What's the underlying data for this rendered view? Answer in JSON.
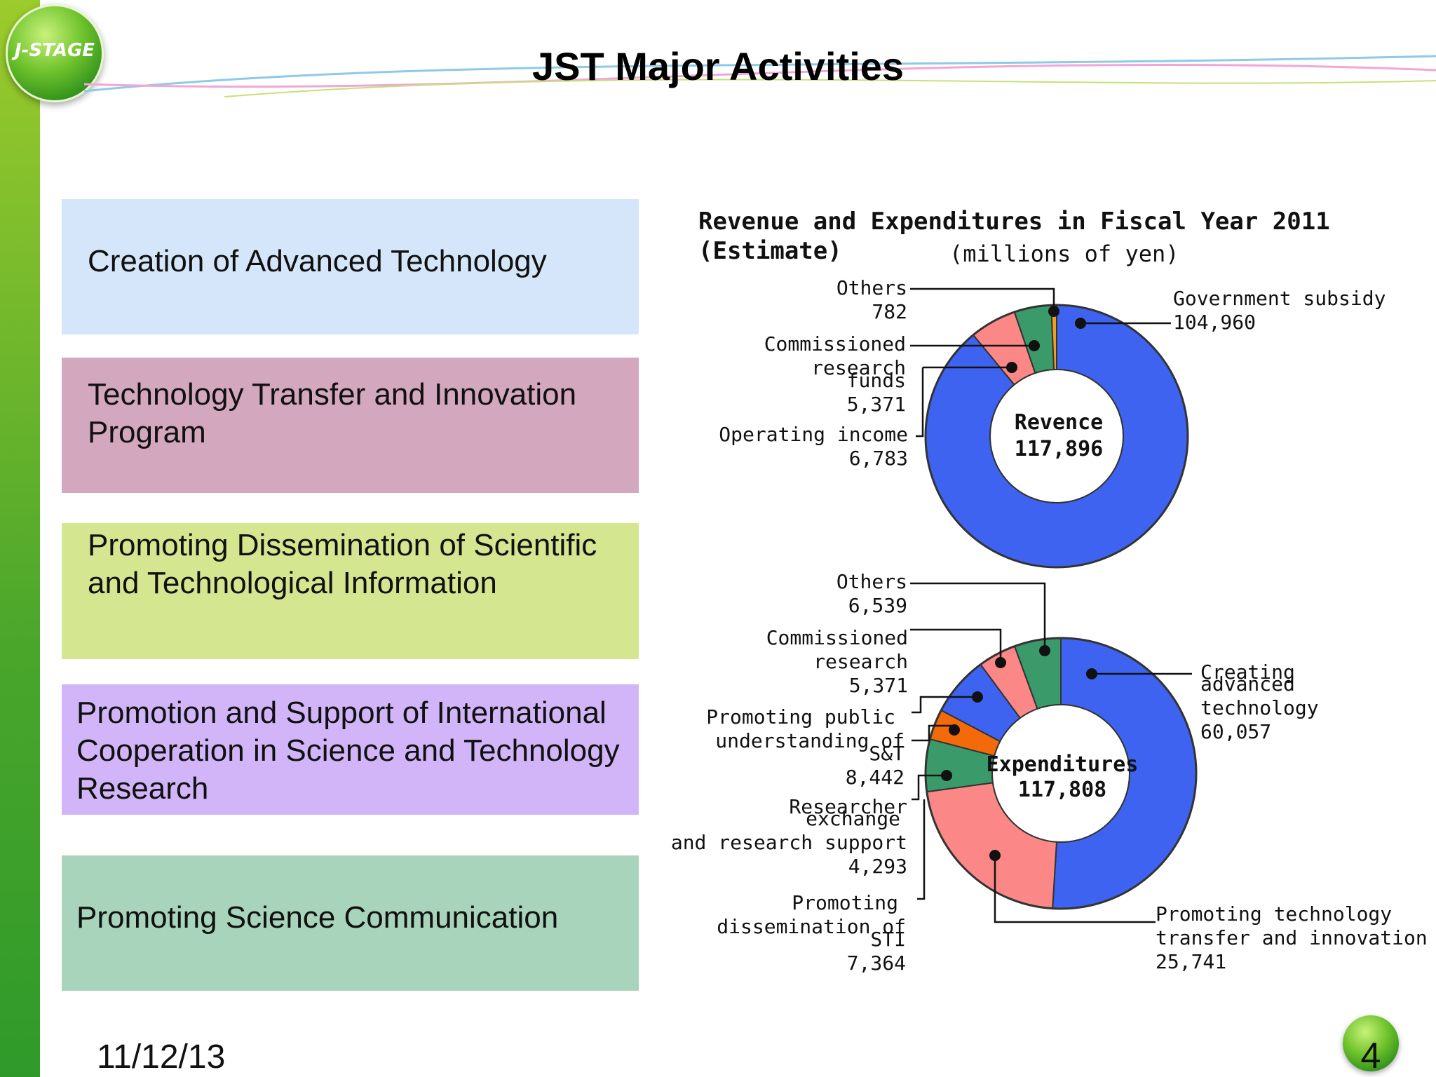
{
  "slide": {
    "logo_text": "J-STAGE",
    "title": "JST Major Activities",
    "date": "11/12/13",
    "page_number": "4"
  },
  "activities": [
    {
      "label": "Creation of Advanced Technology",
      "color": "#d5e6fa"
    },
    {
      "label": "Technology Transfer and Innovation Program",
      "color": "#d3a8bf"
    },
    {
      "label": "Promoting Dissemination of Scientific and Technological Information",
      "color": "#d4e690"
    },
    {
      "label": "Promotion and Support of International Cooperation in Science and Technology Research",
      "color": "#d2b5f8"
    },
    {
      "label": "Promoting Science Communication",
      "color": "#a8d4bb"
    }
  ],
  "chart_data": [
    {
      "type": "pie",
      "title": "Revenue and Expenditures in Fiscal Year 2011 (Estimate)",
      "subtitle": "(millions of yen)",
      "center_label": "Revence",
      "center_value": "117,896",
      "total": 117896,
      "slices": [
        {
          "name": "Government subsidy",
          "value": 104960,
          "value_label": "104,960",
          "color": "#3d63f0"
        },
        {
          "name": "Operating income",
          "value": 6783,
          "value_label": "6,783",
          "color": "#fb8787"
        },
        {
          "name": "Commissioned research funds",
          "value": 5371,
          "value_label": "5,371",
          "color": "#3a9a6a"
        },
        {
          "name": "Others",
          "value": 782,
          "value_label": "782",
          "color": "#f0a020"
        }
      ]
    },
    {
      "type": "pie",
      "center_label": "Expenditures",
      "center_value": "117,808",
      "total": 117808,
      "slices": [
        {
          "name": "Creating advanced technology",
          "value": 60057,
          "value_label": "60,057",
          "color": "#3d63f0"
        },
        {
          "name": "Promoting technology transfer and innovation",
          "value": 25741,
          "value_label": "25,741",
          "color": "#fb8787"
        },
        {
          "name": "Promoting dissemination of STI",
          "value": 7364,
          "value_label": "7,364",
          "color": "#3a9a6a"
        },
        {
          "name": "Researcher exchange and research support",
          "value": 4293,
          "value_label": "4,293",
          "color": "#f46a0a"
        },
        {
          "name": "Promoting public understanding of S&T",
          "value": 8442,
          "value_label": "8,442",
          "color": "#3d63f0"
        },
        {
          "name": "Commissioned research",
          "value": 5371,
          "value_label": "5,371",
          "color": "#fb8787"
        },
        {
          "name": "Others",
          "value": 6539,
          "value_label": "6,539",
          "color": "#3a9a6a"
        }
      ]
    }
  ]
}
